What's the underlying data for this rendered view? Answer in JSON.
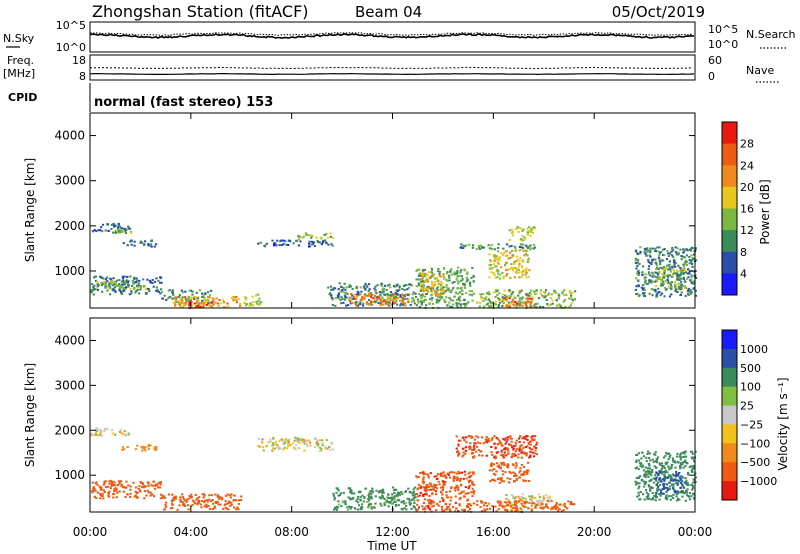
{
  "header": {
    "station": "Zhongshan Station (fitACF)",
    "beam": "Beam 04",
    "date": "05/Oct/2019"
  },
  "top_panels": {
    "nsky_label": "N.Sky",
    "nsearch_label": "N.Search",
    "noise_ticks_left": [
      "10^5",
      "10^0"
    ],
    "noise_ticks_right": [
      "10^5",
      "10^0"
    ],
    "freq_label_1": "Freq.",
    "freq_label_2": "[MHz]",
    "freq_ticks": [
      "18",
      "8"
    ],
    "nave_ticks": [
      "60",
      "0"
    ],
    "nave_label": "Nave",
    "cpid_label": "CPID",
    "cpid_text": "normal (fast stereo) 153"
  },
  "colors": {
    "background": "#ffffff",
    "axis": "#000000",
    "power_scale": [
      "#1a1aff",
      "#2a4fa8",
      "#3a8a5a",
      "#7ab843",
      "#e8c81a",
      "#f08a1a",
      "#ee5a10",
      "#e81a10"
    ],
    "velocity_scale": [
      "#e81a10",
      "#f05a10",
      "#f08a1a",
      "#f2c21a",
      "#c8c8c8",
      "#80c040",
      "#3a8a5a",
      "#2a4fa8",
      "#1a1aff"
    ]
  },
  "chart_data": [
    {
      "type": "heatmap",
      "title": "",
      "xlabel": "Time UT",
      "ylabel": "Slant Range [km]",
      "x_range_hours": [
        0,
        24
      ],
      "x_ticks": [
        "00:00",
        "04:00",
        "08:00",
        "12:00",
        "16:00",
        "20:00",
        "00:00"
      ],
      "y_range_km": [
        180,
        4500
      ],
      "y_ticks": [
        1000,
        2000,
        3000,
        4000
      ],
      "colorbar": {
        "label": "Power [dB]",
        "ticks": [
          "4",
          "8",
          "12",
          "16",
          "20",
          "24",
          "28"
        ],
        "range": [
          0,
          32
        ]
      },
      "regions": [
        {
          "t": [
            0.0,
            1.6
          ],
          "r": [
            1900,
            2080
          ],
          "v": 7
        },
        {
          "t": [
            0.7,
            1.6
          ],
          "r": [
            1850,
            1950
          ],
          "v": 14
        },
        {
          "t": [
            1.2,
            2.6
          ],
          "r": [
            1560,
            1700
          ],
          "v": 7
        },
        {
          "t": [
            0.0,
            2.8
          ],
          "r": [
            500,
            900
          ],
          "v": 8
        },
        {
          "t": [
            0.2,
            2.2
          ],
          "r": [
            620,
            800
          ],
          "v": 15
        },
        {
          "t": [
            2.8,
            4.8
          ],
          "r": [
            300,
            600
          ],
          "v": 10
        },
        {
          "t": [
            3.2,
            6.0
          ],
          "r": [
            200,
            450
          ],
          "v": 21
        },
        {
          "t": [
            3.8,
            4.8
          ],
          "r": [
            200,
            340
          ],
          "v": 27
        },
        {
          "t": [
            6.0,
            6.8
          ],
          "r": [
            250,
            500
          ],
          "v": 16
        },
        {
          "t": [
            6.6,
            9.6
          ],
          "r": [
            1560,
            1700
          ],
          "v": 7
        },
        {
          "t": [
            8.2,
            9.6
          ],
          "r": [
            1720,
            1860
          ],
          "v": 14
        },
        {
          "t": [
            9.4,
            12.9
          ],
          "r": [
            250,
            750
          ],
          "v": 10
        },
        {
          "t": [
            10.2,
            12.6
          ],
          "r": [
            260,
            520
          ],
          "v": 23
        },
        {
          "t": [
            12.9,
            15.2
          ],
          "r": [
            200,
            1100
          ],
          "v": 12
        },
        {
          "t": [
            13.1,
            14.0
          ],
          "r": [
            500,
            1000
          ],
          "v": 20
        },
        {
          "t": [
            14.5,
            17.7
          ],
          "r": [
            1500,
            1620
          ],
          "v": 10
        },
        {
          "t": [
            15.8,
            17.4
          ],
          "r": [
            850,
            1500
          ],
          "v": 18
        },
        {
          "t": [
            15.3,
            19.2
          ],
          "r": [
            200,
            600
          ],
          "v": 14
        },
        {
          "t": [
            16.4,
            17.6
          ],
          "r": [
            220,
            420
          ],
          "v": 26
        },
        {
          "t": [
            16.6,
            17.6
          ],
          "r": [
            1700,
            2000
          ],
          "v": 16
        },
        {
          "t": [
            21.6,
            24.0
          ],
          "r": [
            450,
            1550
          ],
          "v": 9
        },
        {
          "t": [
            22.4,
            23.6
          ],
          "r": [
            600,
            1100
          ],
          "v": 14
        }
      ]
    },
    {
      "type": "heatmap",
      "title": "",
      "xlabel": "Time UT",
      "ylabel": "Slant Range [km]",
      "x_range_hours": [
        0,
        24
      ],
      "x_ticks": [
        "00:00",
        "04:00",
        "08:00",
        "12:00",
        "16:00",
        "20:00",
        "00:00"
      ],
      "y_range_km": [
        180,
        4500
      ],
      "y_ticks": [
        1000,
        2000,
        3000,
        4000
      ],
      "colorbar": {
        "label": "Velocity [m s⁻¹]",
        "ticks": [
          "1000",
          "500",
          "100",
          "25",
          "−25",
          "−100",
          "−500",
          "−1000"
        ],
        "range": [
          -1000,
          1000
        ]
      },
      "regions": [
        {
          "t": [
            0.0,
            1.6
          ],
          "r": [
            1900,
            2080
          ],
          "v": 0
        },
        {
          "t": [
            1.2,
            2.6
          ],
          "r": [
            1560,
            1700
          ],
          "v": -60
        },
        {
          "t": [
            0.0,
            2.8
          ],
          "r": [
            500,
            900
          ],
          "v": -300
        },
        {
          "t": [
            2.8,
            6.0
          ],
          "r": [
            250,
            600
          ],
          "v": -250
        },
        {
          "t": [
            6.6,
            9.6
          ],
          "r": [
            1560,
            1860
          ],
          "v": 0
        },
        {
          "t": [
            9.6,
            12.9
          ],
          "r": [
            250,
            750
          ],
          "v": 150
        },
        {
          "t": [
            12.9,
            15.2
          ],
          "r": [
            200,
            1100
          ],
          "v": -400
        },
        {
          "t": [
            14.5,
            17.7
          ],
          "r": [
            1400,
            1900
          ],
          "v": -450
        },
        {
          "t": [
            15.8,
            17.4
          ],
          "r": [
            850,
            1300
          ],
          "v": -300
        },
        {
          "t": [
            16.4,
            18.2
          ],
          "r": [
            250,
            600
          ],
          "v": 0
        },
        {
          "t": [
            15.3,
            19.2
          ],
          "r": [
            200,
            450
          ],
          "v": -150
        },
        {
          "t": [
            21.6,
            24.0
          ],
          "r": [
            450,
            1550
          ],
          "v": 300
        },
        {
          "t": [
            22.4,
            23.6
          ],
          "r": [
            600,
            1100
          ],
          "v": 700
        }
      ]
    }
  ]
}
